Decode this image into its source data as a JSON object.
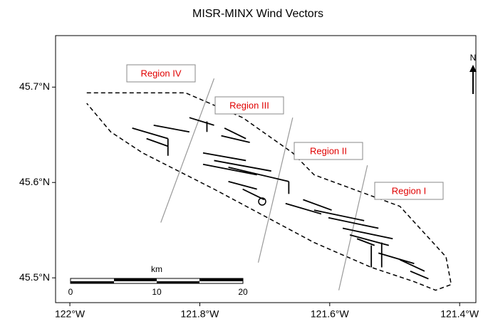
{
  "chart_data": {
    "type": "map",
    "title": "MISR-MINX Wind Vectors",
    "xlim": [
      -122.022,
      -121.375
    ],
    "ylim": [
      45.474,
      45.754
    ],
    "xticks": [
      {
        "value": -122,
        "label": "122°W"
      },
      {
        "value": -121.8,
        "label": "121.8°W"
      },
      {
        "value": -121.6,
        "label": "121.6°W"
      },
      {
        "value": -121.4,
        "label": "121.4°W"
      }
    ],
    "yticks": [
      {
        "value": 45.5,
        "label": "45.5°N"
      },
      {
        "value": 45.6,
        "label": "45.6°N"
      },
      {
        "value": 45.7,
        "label": "45.7°N"
      }
    ],
    "regions": [
      "Region IV",
      "Region III",
      "Region II",
      "Region I"
    ],
    "outline": {
      "lon": [
        -121.974,
        -121.822,
        -121.734,
        -121.657,
        -121.624,
        -121.492,
        -121.421,
        -121.413,
        -121.437,
        -121.47,
        -121.536,
        -121.624,
        -121.778,
        -121.888,
        -121.937,
        -121.974
      ],
      "lat": [
        45.694,
        45.694,
        45.668,
        45.631,
        45.608,
        45.575,
        45.522,
        45.493,
        45.487,
        45.496,
        45.511,
        45.537,
        45.593,
        45.631,
        45.653,
        45.683
      ]
    },
    "dividers": [
      {
        "lon": [
          -121.778,
          -121.86
        ],
        "lat": [
          45.709,
          45.558
        ]
      },
      {
        "lon": [
          -121.657,
          -121.71
        ],
        "lat": [
          45.668,
          45.516
        ]
      },
      {
        "lon": [
          -121.542,
          -121.586
        ],
        "lat": [
          45.618,
          45.487
        ]
      }
    ],
    "vectors": [
      [
        -121.904,
        45.657,
        -121.849,
        45.646
      ],
      [
        -121.871,
        45.66,
        -121.816,
        45.653
      ],
      [
        -121.882,
        45.646,
        -121.849,
        45.638
      ],
      [
        -121.849,
        45.646,
        -121.849,
        45.628
      ],
      [
        -121.816,
        45.668,
        -121.778,
        45.66
      ],
      [
        -121.789,
        45.664,
        -121.789,
        45.653
      ],
      [
        -121.762,
        45.657,
        -121.729,
        45.646
      ],
      [
        -121.767,
        45.649,
        -121.723,
        45.642
      ],
      [
        -121.795,
        45.631,
        -121.729,
        45.623
      ],
      [
        -121.778,
        45.623,
        -121.69,
        45.612
      ],
      [
        -121.795,
        45.619,
        -121.712,
        45.608
      ],
      [
        -121.756,
        45.616,
        -121.663,
        45.601
      ],
      [
        -121.663,
        45.601,
        -121.663,
        45.588
      ],
      [
        -121.756,
        45.601,
        -121.712,
        45.593
      ],
      [
        -121.734,
        45.593,
        -121.701,
        45.582
      ],
      [
        -121.641,
        45.582,
        -121.597,
        45.571
      ],
      [
        -121.668,
        45.578,
        -121.613,
        45.567
      ],
      [
        -121.624,
        45.571,
        -121.547,
        45.56
      ],
      [
        -121.602,
        45.563,
        -121.525,
        45.552
      ],
      [
        -121.58,
        45.552,
        -121.503,
        45.541
      ],
      [
        -121.569,
        45.545,
        -121.509,
        45.534
      ],
      [
        -121.558,
        45.541,
        -121.531,
        45.534
      ],
      [
        -121.525,
        45.526,
        -121.47,
        45.515
      ],
      [
        -121.492,
        45.519,
        -121.454,
        45.507
      ],
      [
        -121.476,
        45.507,
        -121.448,
        45.499
      ],
      [
        -121.536,
        45.534,
        -121.536,
        45.511
      ],
      [
        -121.52,
        45.537,
        -121.52,
        45.511
      ]
    ],
    "scale_bar": {
      "unit": "km",
      "labels": [
        "0",
        "10",
        "20"
      ]
    },
    "north": "N"
  }
}
